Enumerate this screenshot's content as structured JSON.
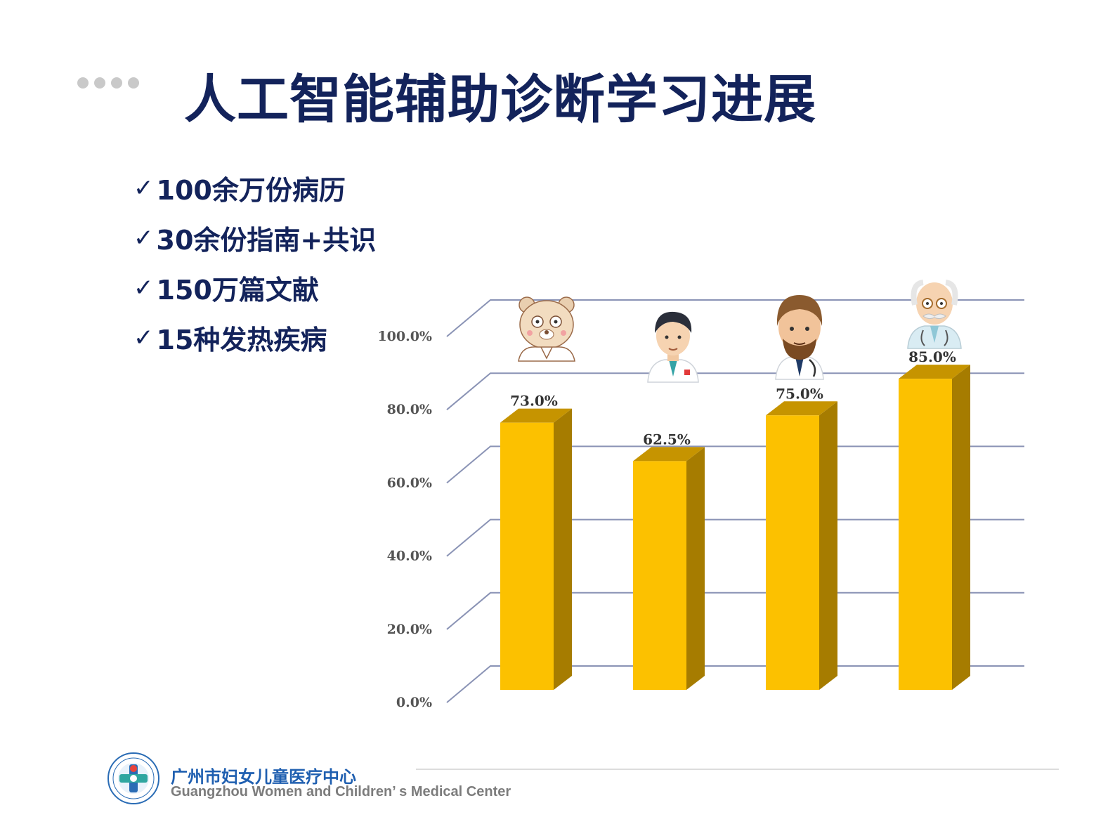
{
  "header": {
    "title": "人工智能辅助诊断学习进展"
  },
  "bullets": [
    {
      "check": "✓",
      "text": "100余万份病历"
    },
    {
      "check": "✓",
      "text": "30余份指南+共识"
    },
    {
      "check": "✓",
      "text": "150万篇文献"
    },
    {
      "check": "✓",
      "text": "15种发热疾病"
    }
  ],
  "colors": {
    "title": "#13235b",
    "bar_front": "#fcc100",
    "bar_side": "#a67c00",
    "bar_top": "#c69400",
    "grid": "#8a93b5",
    "org_cn": "#1f5fb0",
    "org_en": "#7c7c7c"
  },
  "icons": [
    "teddy-bear-doctor-icon",
    "young-doctor-icon",
    "bearded-doctor-icon",
    "senior-doctor-icon"
  ],
  "chart_data": {
    "type": "bar",
    "categories": [
      "",
      "",
      "",
      ""
    ],
    "values": [
      73.0,
      62.5,
      75.0,
      85.0
    ],
    "value_labels": [
      "73.0%",
      "62.5%",
      "75.0%",
      "85.0%"
    ],
    "ylim": [
      0,
      100
    ],
    "yticks": [
      0,
      20,
      40,
      60,
      80,
      100
    ],
    "ytick_labels": [
      "0.0%",
      "20.0%",
      "40.0%",
      "60.0%",
      "80.0%",
      "100.0%"
    ],
    "grid": true,
    "three_d": true,
    "title": "",
    "xlabel": "",
    "ylabel": ""
  },
  "footer": {
    "org_cn": "广州市妇女儿童医疗中心",
    "org_en": "Guangzhou Women and Children’ s Medical Center"
  }
}
